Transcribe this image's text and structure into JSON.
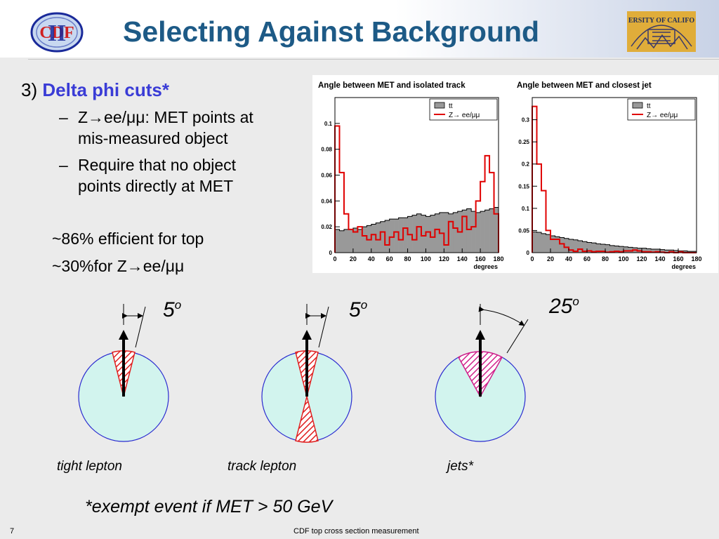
{
  "slide": {
    "title": "Selecting Against Background",
    "page_number": "7",
    "footer": "CDF top cross section measurement",
    "logo_text": "CDF II",
    "seal_text": "UNIVERSITY OF CALIFORNIA"
  },
  "bullets": {
    "num": "3)",
    "heading": "Delta phi cuts*",
    "dash": "–",
    "sub1_line1": "Z→ee/μμ: MET points at",
    "sub1_line2": "mis-measured object",
    "sub2_line1": "Require that no object",
    "sub2_line2": "points directly at MET",
    "eff1": "~86% efficient for top",
    "eff2": "~30%for Z→ee/μμ"
  },
  "diagrams": {
    "angle_tight": "5",
    "angle_track": "5",
    "angle_jets": "25",
    "degree_mark": "o",
    "cap_tight": "tight lepton",
    "cap_track": "track lepton",
    "cap_jets": "jets*",
    "exempt": "*exempt event if  MET > 50 GeV"
  },
  "chart_data": [
    {
      "type": "bar",
      "title": "Angle between MET and isolated track",
      "xlabel": "degrees",
      "xlim": [
        0,
        180
      ],
      "ylim": [
        0,
        0.12
      ],
      "xticks": [
        0,
        20,
        40,
        60,
        80,
        100,
        120,
        140,
        160,
        180
      ],
      "yticks": [
        0,
        0.02,
        0.04,
        0.06,
        0.08,
        0.1
      ],
      "legend_position": "top-right",
      "bin_width": 5,
      "series": [
        {
          "name": "tt",
          "color": "#999999",
          "style": "filled",
          "values": [
            0.018,
            0.017,
            0.018,
            0.018,
            0.019,
            0.018,
            0.02,
            0.021,
            0.022,
            0.023,
            0.024,
            0.025,
            0.026,
            0.026,
            0.027,
            0.027,
            0.028,
            0.029,
            0.03,
            0.029,
            0.028,
            0.029,
            0.03,
            0.031,
            0.031,
            0.03,
            0.031,
            0.032,
            0.033,
            0.034,
            0.032,
            0.031,
            0.032,
            0.033,
            0.034,
            0.035
          ]
        },
        {
          "name": "Z→ ee/μμ",
          "color": "#e00000",
          "style": "step",
          "values": [
            0.098,
            0.062,
            0.03,
            0.018,
            0.016,
            0.02,
            0.013,
            0.01,
            0.014,
            0.01,
            0.016,
            0.006,
            0.012,
            0.016,
            0.01,
            0.019,
            0.014,
            0.01,
            0.02,
            0.013,
            0.016,
            0.012,
            0.018,
            0.015,
            0.006,
            0.024,
            0.019,
            0.016,
            0.028,
            0.018,
            0.02,
            0.04,
            0.055,
            0.075,
            0.062,
            0.03
          ]
        }
      ]
    },
    {
      "type": "bar",
      "title": "Angle between MET and closest jet",
      "xlabel": "degrees",
      "xlim": [
        0,
        180
      ],
      "ylim": [
        0,
        0.35
      ],
      "xticks": [
        0,
        20,
        40,
        60,
        80,
        100,
        120,
        140,
        160,
        180
      ],
      "yticks": [
        0,
        0.05,
        0.1,
        0.15,
        0.2,
        0.25,
        0.3
      ],
      "legend_position": "top-right",
      "bin_width": 5,
      "series": [
        {
          "name": "tt",
          "color": "#999999",
          "style": "filled",
          "values": [
            0.047,
            0.046,
            0.043,
            0.041,
            0.038,
            0.036,
            0.034,
            0.032,
            0.03,
            0.029,
            0.027,
            0.025,
            0.023,
            0.022,
            0.02,
            0.019,
            0.018,
            0.016,
            0.015,
            0.014,
            0.013,
            0.012,
            0.011,
            0.01,
            0.01,
            0.009,
            0.008,
            0.008,
            0.007,
            0.006,
            0.006,
            0.005,
            0.004,
            0.004,
            0.003,
            0.003
          ]
        },
        {
          "name": "Z→ ee/μμ",
          "color": "#e00000",
          "style": "step",
          "values": [
            0.33,
            0.2,
            0.14,
            0.05,
            0.03,
            0.03,
            0.02,
            0.012,
            0.006,
            0.003,
            0.008,
            0.003,
            0.004,
            0.002,
            0.003,
            0.003,
            0.001,
            0.002,
            0.003,
            0.002,
            0.004,
            0.004,
            0.006,
            0.004,
            0.002,
            0.002,
            0.001,
            0.002,
            0.001,
            0.0,
            0.002,
            0.0,
            0.002,
            0.0,
            0.0,
            0.0
          ]
        }
      ]
    }
  ]
}
